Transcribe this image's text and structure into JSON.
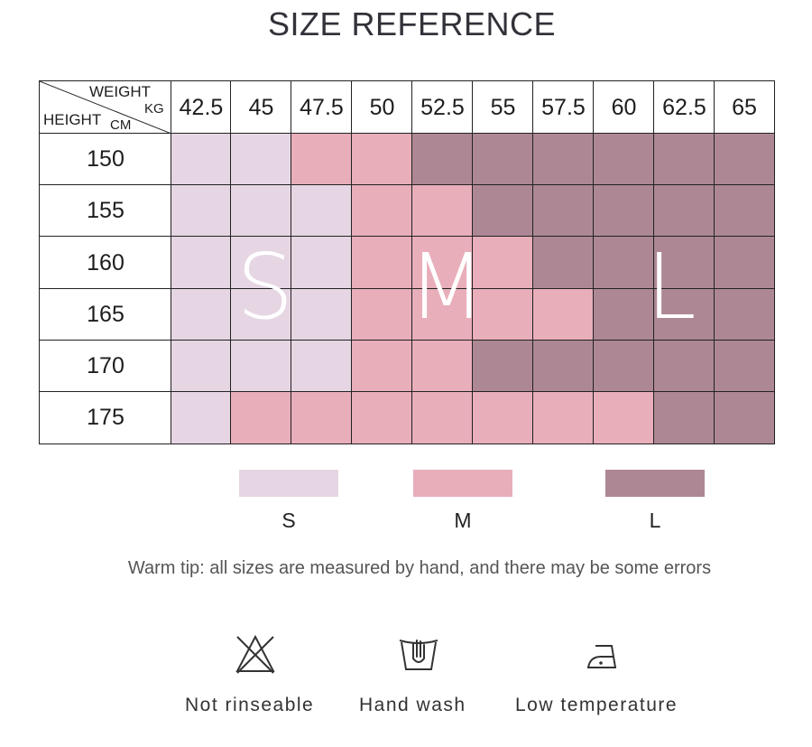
{
  "title": "SIZE REFERENCE",
  "table": {
    "corner": {
      "weight": "WEIGHT",
      "kg": "KG",
      "height": "HEIGHT",
      "cm": "CM"
    },
    "weights": [
      "42.5",
      "45",
      "47.5",
      "50",
      "52.5",
      "55",
      "57.5",
      "60",
      "62.5",
      "65"
    ],
    "heights": [
      "150",
      "155",
      "160",
      "165",
      "170",
      "175"
    ],
    "sizes": [
      [
        "S",
        "S",
        "M",
        "M",
        "L",
        "L",
        "L",
        "L",
        "L",
        "L"
      ],
      [
        "S",
        "S",
        "S",
        "M",
        "M",
        "L",
        "L",
        "L",
        "L",
        "L"
      ],
      [
        "S",
        "S",
        "S",
        "M",
        "M",
        "M",
        "L",
        "L",
        "L",
        "L"
      ],
      [
        "S",
        "S",
        "S",
        "M",
        "M",
        "M",
        "M",
        "L",
        "L",
        "L"
      ],
      [
        "S",
        "S",
        "S",
        "M",
        "M",
        "L",
        "L",
        "L",
        "L",
        "L"
      ],
      [
        "S",
        "M",
        "M",
        "M",
        "M",
        "M",
        "M",
        "M",
        "L",
        "L"
      ]
    ],
    "big_letters": [
      "S",
      "M",
      "L"
    ]
  },
  "colors": {
    "S": "#e6d6e3",
    "M": "#e8aeba",
    "L": "#ad8894"
  },
  "legend": [
    {
      "size": "S",
      "label": "S"
    },
    {
      "size": "M",
      "label": "M"
    },
    {
      "size": "L",
      "label": "L"
    }
  ],
  "tip": "Warm tip: all sizes are measured by hand, and there may be some errors",
  "care": [
    {
      "icon": "no-bleach-icon",
      "label": "Not rinseable"
    },
    {
      "icon": "hand-wash-icon",
      "label": "Hand wash"
    },
    {
      "icon": "low-temperature-iron-icon",
      "label": "Low temperature"
    }
  ]
}
